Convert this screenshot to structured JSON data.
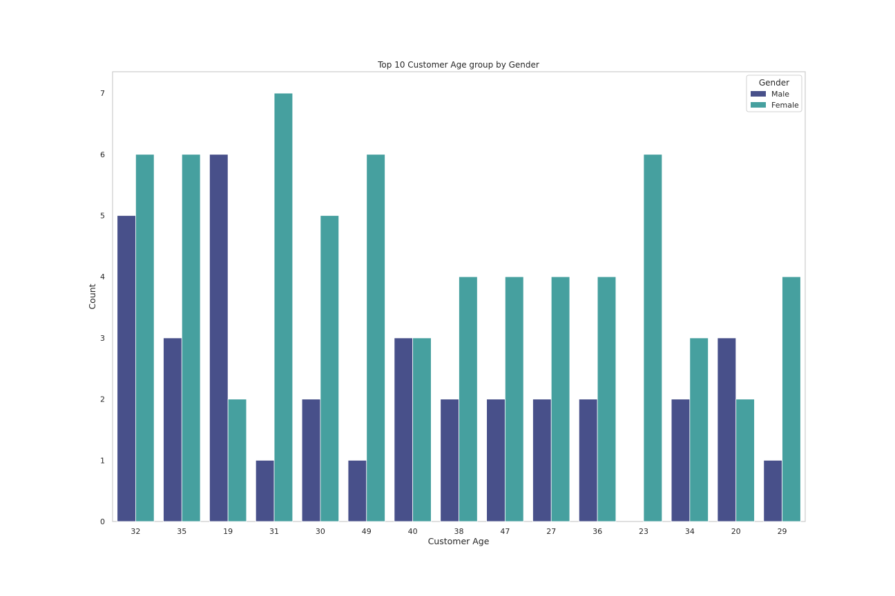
{
  "chart_data": {
    "type": "bar",
    "title": "Top 10 Customer Age group by Gender",
    "xlabel": "Customer Age",
    "ylabel": "Count",
    "categories": [
      "32",
      "35",
      "19",
      "31",
      "30",
      "49",
      "40",
      "38",
      "47",
      "27",
      "36",
      "23",
      "34",
      "20",
      "29"
    ],
    "series": [
      {
        "name": "Male",
        "color": "#48508a",
        "values": [
          5,
          3,
          6,
          1,
          2,
          1,
          3,
          2,
          2,
          2,
          2,
          0,
          2,
          3,
          1
        ]
      },
      {
        "name": "Female",
        "color": "#46a09f",
        "values": [
          6,
          6,
          2,
          7,
          5,
          6,
          3,
          4,
          4,
          4,
          4,
          6,
          3,
          2,
          4
        ]
      }
    ],
    "ylim": [
      0,
      7.35
    ],
    "yticks": [
      0,
      1,
      2,
      3,
      4,
      5,
      6,
      7
    ],
    "grid": false,
    "legend": {
      "title": "Gender",
      "placement": "top-right"
    }
  }
}
